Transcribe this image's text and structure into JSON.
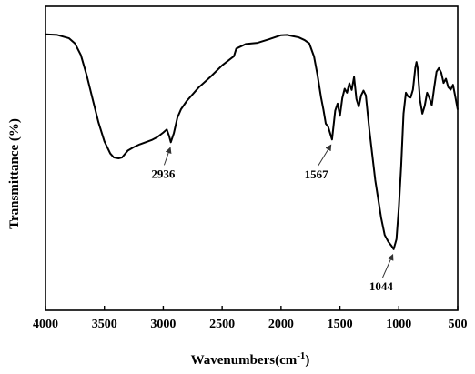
{
  "chart_data": {
    "type": "line",
    "xlabel": "Wavenumbers(cm",
    "xlabel_sup": "-1",
    "xlabel_tail": ")",
    "ylabel": "Transmittance (%)",
    "xlim": [
      4000,
      500
    ],
    "x_reversed": true,
    "ylim": [
      0,
      100
    ],
    "y_ticks_shown": false,
    "x_ticks": [
      4000,
      3500,
      3000,
      2500,
      2000,
      1500,
      1000,
      500
    ],
    "grid": false,
    "legend": "none",
    "series": [
      {
        "color": "#000000",
        "points": [
          [
            4000,
            90.8
          ],
          [
            3900,
            90.6
          ],
          [
            3800,
            89.5
          ],
          [
            3750,
            87.8
          ],
          [
            3700,
            84.0
          ],
          [
            3650,
            77.3
          ],
          [
            3600,
            69.5
          ],
          [
            3550,
            61.8
          ],
          [
            3500,
            55.6
          ],
          [
            3450,
            51.6
          ],
          [
            3420,
            50.3
          ],
          [
            3380,
            50.0
          ],
          [
            3350,
            50.3
          ],
          [
            3300,
            52.6
          ],
          [
            3250,
            53.7
          ],
          [
            3200,
            54.6
          ],
          [
            3150,
            55.3
          ],
          [
            3100,
            56.0
          ],
          [
            3050,
            57.0
          ],
          [
            3000,
            58.5
          ],
          [
            2970,
            59.5
          ],
          [
            2950,
            57.3
          ],
          [
            2936,
            55.3
          ],
          [
            2910,
            58.3
          ],
          [
            2880,
            63.4
          ],
          [
            2850,
            66.1
          ],
          [
            2800,
            68.9
          ],
          [
            2700,
            73.3
          ],
          [
            2600,
            76.8
          ],
          [
            2500,
            80.6
          ],
          [
            2400,
            83.6
          ],
          [
            2380,
            86.1
          ],
          [
            2300,
            87.6
          ],
          [
            2200,
            88.0
          ],
          [
            2100,
            89.2
          ],
          [
            2000,
            90.5
          ],
          [
            1950,
            90.6
          ],
          [
            1900,
            90.2
          ],
          [
            1850,
            89.8
          ],
          [
            1800,
            88.9
          ],
          [
            1760,
            87.8
          ],
          [
            1720,
            83.5
          ],
          [
            1690,
            77.3
          ],
          [
            1660,
            70.0
          ],
          [
            1640,
            66.0
          ],
          [
            1620,
            61.4
          ],
          [
            1600,
            60.4
          ],
          [
            1567,
            56.2
          ],
          [
            1540,
            65.7
          ],
          [
            1520,
            68.0
          ],
          [
            1500,
            64.0
          ],
          [
            1480,
            69.8
          ],
          [
            1460,
            72.9
          ],
          [
            1440,
            71.6
          ],
          [
            1420,
            74.7
          ],
          [
            1400,
            72.5
          ],
          [
            1380,
            76.8
          ],
          [
            1360,
            69.5
          ],
          [
            1340,
            67.0
          ],
          [
            1320,
            70.7
          ],
          [
            1300,
            72.3
          ],
          [
            1280,
            70.7
          ],
          [
            1250,
            59.3
          ],
          [
            1200,
            42.8
          ],
          [
            1150,
            30.4
          ],
          [
            1120,
            24.8
          ],
          [
            1090,
            22.6
          ],
          [
            1060,
            21.1
          ],
          [
            1044,
            20.1
          ],
          [
            1020,
            23.4
          ],
          [
            1000,
            33.7
          ],
          [
            980,
            47.4
          ],
          [
            960,
            64.7
          ],
          [
            940,
            71.6
          ],
          [
            920,
            70.3
          ],
          [
            900,
            70.0
          ],
          [
            880,
            72.6
          ],
          [
            860,
            79.8
          ],
          [
            850,
            81.7
          ],
          [
            840,
            79.7
          ],
          [
            820,
            69.2
          ],
          [
            800,
            64.7
          ],
          [
            780,
            67.3
          ],
          [
            760,
            71.6
          ],
          [
            740,
            69.8
          ],
          [
            720,
            67.5
          ],
          [
            700,
            73.2
          ],
          [
            680,
            78.5
          ],
          [
            660,
            79.7
          ],
          [
            640,
            78.2
          ],
          [
            620,
            74.8
          ],
          [
            600,
            76.2
          ],
          [
            580,
            73.4
          ],
          [
            560,
            72.6
          ],
          [
            540,
            74.2
          ],
          [
            520,
            70.2
          ],
          [
            500,
            66.0
          ]
        ]
      }
    ],
    "annotations": [
      {
        "text": "2936",
        "x": 2936,
        "y": 55.3,
        "label_x": 3000,
        "label_y": 43.6
      },
      {
        "text": "1567",
        "x": 1567,
        "y": 56.2,
        "label_x": 1700,
        "label_y": 43.4
      },
      {
        "text": "1044",
        "x": 1044,
        "y": 20.1,
        "label_x": 1150,
        "label_y": 6.6
      }
    ]
  }
}
